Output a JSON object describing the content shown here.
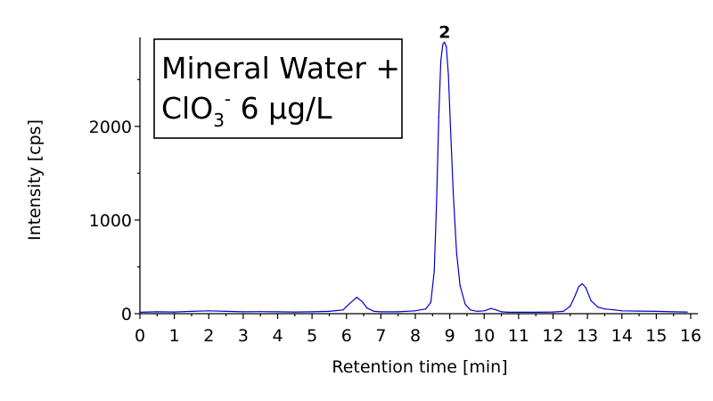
{
  "chart_data": {
    "type": "line",
    "xlabel": "Retention time [min]",
    "ylabel": "Intensity [cps]",
    "xlim": [
      0,
      16
    ],
    "ylim": [
      0,
      2950
    ],
    "xticks": [
      0,
      1,
      2,
      3,
      4,
      5,
      6,
      7,
      8,
      9,
      10,
      11,
      12,
      13,
      14,
      15,
      16
    ],
    "yticks": [
      0,
      1000,
      2000
    ],
    "x_tick_labels": [
      "0",
      "1",
      "2",
      "3",
      "4",
      "5",
      "6",
      "7",
      "8",
      "9",
      "10",
      "11",
      "12",
      "13",
      "14",
      "15",
      "16"
    ],
    "y_tick_labels": [
      "0",
      "1000",
      "2000"
    ],
    "grid": false,
    "line_color": "#0000cc",
    "annotation": {
      "line1": "Mineral Water +",
      "species": "ClO",
      "subscript": "3",
      "superscript": "-",
      "rest": " 6 µg/L"
    },
    "peak_labels": [
      {
        "text": "2",
        "x": 8.85,
        "y": 2870
      }
    ],
    "series": [
      {
        "x": [
          0.0,
          0.5,
          1.0,
          1.5,
          2.0,
          2.5,
          3.0,
          3.5,
          4.0,
          4.5,
          5.0,
          5.5,
          5.9,
          6.1,
          6.3,
          6.45,
          6.6,
          6.8,
          7.0,
          7.5,
          8.0,
          8.3,
          8.45,
          8.55,
          8.62,
          8.68,
          8.74,
          8.8,
          8.85,
          8.9,
          8.96,
          9.02,
          9.1,
          9.2,
          9.3,
          9.45,
          9.6,
          9.8,
          10.0,
          10.2,
          10.35,
          10.5,
          10.7,
          11.0,
          11.5,
          12.0,
          12.3,
          12.5,
          12.65,
          12.75,
          12.85,
          12.95,
          13.1,
          13.3,
          13.5,
          13.8,
          14.0,
          14.5,
          15.0,
          15.5,
          15.9
        ],
        "y": [
          15,
          20,
          18,
          25,
          30,
          25,
          20,
          22,
          20,
          18,
          20,
          25,
          40,
          110,
          175,
          130,
          60,
          25,
          20,
          20,
          30,
          50,
          120,
          450,
          1200,
          2100,
          2700,
          2880,
          2900,
          2850,
          2550,
          2000,
          1300,
          650,
          300,
          100,
          40,
          25,
          30,
          55,
          40,
          20,
          15,
          15,
          15,
          18,
          25,
          80,
          200,
          290,
          320,
          280,
          140,
          70,
          50,
          40,
          30,
          28,
          25,
          20,
          18
        ]
      }
    ]
  }
}
